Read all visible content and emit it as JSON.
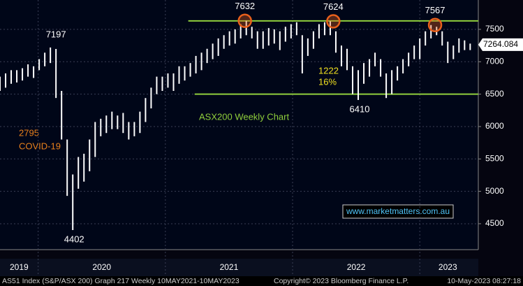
{
  "chart_data": {
    "type": "range-bar",
    "title": "ASX200 Weekly Chart",
    "x": [
      2019.7,
      2019.744,
      2019.788,
      2019.832,
      2019.876,
      2019.92,
      2019.964,
      2020.008,
      2020.052,
      2020.096,
      2020.14,
      2020.184,
      2020.228,
      2020.272,
      2020.316,
      2020.36,
      2020.404,
      2020.448,
      2020.492,
      2020.536,
      2020.58,
      2020.624,
      2020.668,
      2020.712,
      2020.756,
      2020.8,
      2020.844,
      2020.888,
      2020.932,
      2020.976,
      2021.02,
      2021.064,
      2021.108,
      2021.152,
      2021.196,
      2021.24,
      2021.284,
      2021.328,
      2021.372,
      2021.416,
      2021.46,
      2021.504,
      2021.548,
      2021.592,
      2021.636,
      2021.68,
      2021.724,
      2021.768,
      2021.812,
      2021.856,
      2021.9,
      2021.944,
      2021.988,
      2022.032,
      2022.076,
      2022.12,
      2022.164,
      2022.208,
      2022.252,
      2022.296,
      2022.34,
      2022.384,
      2022.428,
      2022.472,
      2022.516,
      2022.56,
      2022.604,
      2022.648,
      2022.692,
      2022.736,
      2022.78,
      2022.824,
      2022.868,
      2022.912,
      2022.956,
      2023.0,
      2023.044,
      2023.088,
      2023.132,
      2023.176,
      2023.22,
      2023.264,
      2023.308,
      2023.352,
      2023.396
    ],
    "series": [
      {
        "name": "High",
        "color": "#ffffff",
        "values": [
          6770,
          6820,
          6870,
          6870,
          6900,
          6960,
          6930,
          7040,
          7140,
          7220,
          7197,
          6550,
          5800,
          5260,
          5530,
          5580,
          5800,
          6070,
          6120,
          6170,
          6230,
          6170,
          6210,
          6070,
          6070,
          6230,
          6440,
          6600,
          6770,
          6770,
          6820,
          6820,
          6930,
          6930,
          6980,
          7090,
          7140,
          7200,
          7280,
          7360,
          7410,
          7470,
          7500,
          7580,
          7632,
          7540,
          7470,
          7470,
          7520,
          7500,
          7470,
          7540,
          7580,
          7610,
          7410,
          7360,
          7470,
          7580,
          7610,
          7624,
          7470,
          7250,
          7200,
          6930,
          6870,
          6980,
          7040,
          7140,
          7040,
          6820,
          6870,
          6930,
          7040,
          7140,
          7250,
          7360,
          7470,
          7567,
          7540,
          7470,
          7310,
          7250,
          7360,
          7330,
          7280
        ]
      },
      {
        "name": "Low",
        "color": "#ffffff",
        "values": [
          6550,
          6600,
          6660,
          6680,
          6710,
          6770,
          6750,
          6870,
          6930,
          6980,
          6440,
          5800,
          4930,
          4402,
          5040,
          5150,
          5310,
          5530,
          5850,
          5900,
          5960,
          5960,
          5900,
          5800,
          5850,
          5900,
          6070,
          6280,
          6500,
          6550,
          6600,
          6550,
          6660,
          6710,
          6770,
          6820,
          6870,
          6980,
          7040,
          7090,
          7200,
          7250,
          7280,
          7360,
          7410,
          7360,
          7200,
          7200,
          7250,
          7280,
          7180,
          7310,
          7360,
          7410,
          6820,
          7090,
          7200,
          7360,
          7410,
          7410,
          7140,
          6930,
          6870,
          6500,
          6410,
          6660,
          6770,
          6930,
          6770,
          6440,
          6500,
          6710,
          6820,
          6930,
          7040,
          7040,
          7250,
          7360,
          7410,
          7250,
          6980,
          7040,
          7140,
          7180,
          7180
        ]
      }
    ],
    "xlim": [
      2019.7,
      2023.46
    ],
    "xticks": [
      {
        "value": 2019.85,
        "label": "2019"
      },
      {
        "value": 2020.5,
        "label": "2020"
      },
      {
        "value": 2021.5,
        "label": "2021"
      },
      {
        "value": 2022.5,
        "label": "2022"
      },
      {
        "value": 2023.22,
        "label": "2023"
      }
    ],
    "year_boundaries": [
      2020,
      2021,
      2022,
      2023
    ],
    "ylim": [
      4100,
      7953
    ],
    "yticks": [
      4500,
      5000,
      5500,
      6000,
      6500,
      7000,
      7500
    ],
    "grid": true,
    "peaks": [
      {
        "x": 2020.14,
        "value": 7197,
        "circled": false
      },
      {
        "x": 2021.625,
        "value": 7632,
        "circled": true
      },
      {
        "x": 2022.32,
        "value": 7624,
        "circled": true
      },
      {
        "x": 2023.12,
        "value": 7567,
        "circled": true
      }
    ],
    "lows": [
      {
        "x": 2020.272,
        "value": 4402
      },
      {
        "x": 2022.516,
        "value": 6410
      }
    ],
    "resistance": {
      "value": 7630,
      "from": 2021.18,
      "color": "#8fce3c"
    },
    "support": {
      "value": 6500,
      "from": 2021.23,
      "color": "#8fce3c"
    },
    "last_price": 7264.084,
    "covid_note": [
      "2795",
      "COVID-19"
    ],
    "rally_note": [
      "1222",
      "16%"
    ],
    "watermark": "www.marketmatters.com.au",
    "footer": {
      "left": "AS51 Index (S&P/ASX 200) Graph 217  Weekly 10MAY2021-10MAY2023",
      "center": "Copyright© 2023 Bloomberg Finance L.P.",
      "right": "10-May-2023 08:27:18"
    }
  }
}
